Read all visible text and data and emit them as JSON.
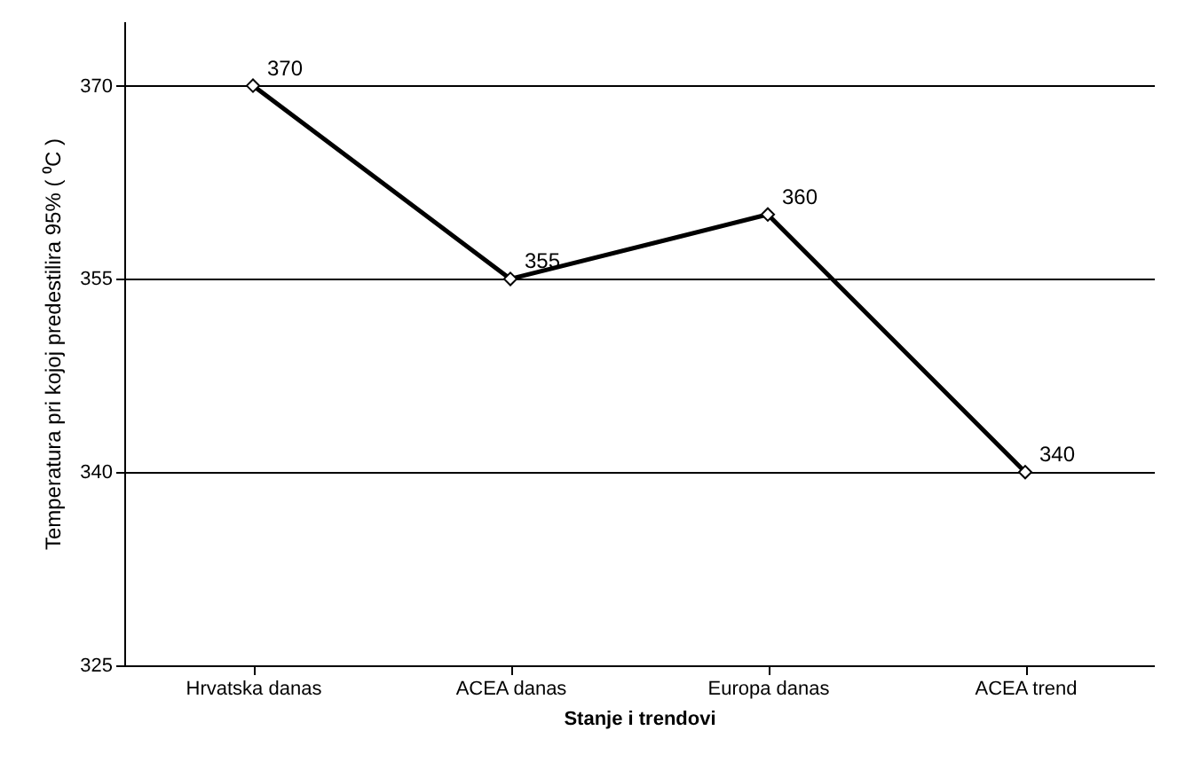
{
  "chart_data": {
    "type": "line",
    "xlabel": "Stanje i trendovi",
    "ylabel": "Temperatura pri kojoj predestilira 95% ( ⁰C )",
    "categories": [
      "Hrvatska danas",
      "ACEA danas",
      "Europa danas",
      "ACEA trend"
    ],
    "series": [
      {
        "color": "#000000",
        "values": [
          370,
          355,
          360,
          340
        ]
      }
    ],
    "ylim": [
      325,
      375
    ],
    "yticks": [
      325,
      340,
      355,
      370
    ],
    "grid": "y",
    "marker": "diamond",
    "line_style": "solid",
    "data_labels": true
  }
}
